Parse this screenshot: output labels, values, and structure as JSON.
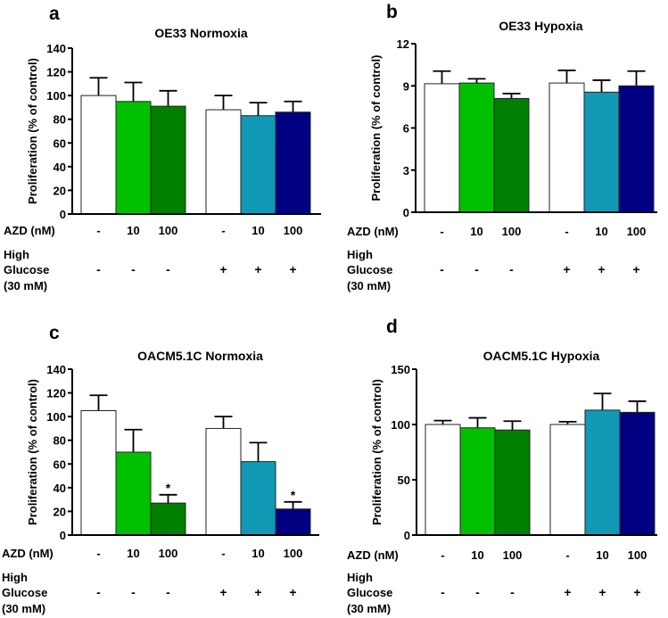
{
  "colors": [
    "#ffffff",
    "#00c000",
    "#008000",
    "#ffffff",
    "#1199b5",
    "#000080"
  ],
  "row_labels": {
    "azd": "AZD (nM)",
    "glucose_line1": "High",
    "glucose_line2": "Glucose",
    "glucose_line3": "(30 mM)"
  },
  "azd_values": [
    "-",
    "10",
    "100",
    "-",
    "10",
    "100"
  ],
  "glucose_values": [
    "-",
    "-",
    "-",
    "+",
    "+",
    "+"
  ],
  "chart_data": [
    {
      "panel": "a",
      "type": "bar",
      "title": "OE33 Normoxia",
      "ylabel": "Proliferation (% of control)",
      "ylim": [
        0,
        140
      ],
      "yticks": [
        0,
        20,
        40,
        60,
        80,
        100,
        120,
        140
      ],
      "values": [
        100,
        95,
        91,
        88,
        83,
        86
      ],
      "errors": [
        15,
        16,
        13,
        12,
        11,
        9
      ],
      "annotations": [
        "",
        "",
        "",
        "",
        "",
        ""
      ]
    },
    {
      "panel": "b",
      "type": "bar",
      "title": "OE33 Hypoxia",
      "ylabel": "Proliferation (% of control)",
      "ylim": [
        0,
        12
      ],
      "yticks": [
        0,
        3,
        6,
        9,
        12
      ],
      "values": [
        9.15,
        9.2,
        8.1,
        9.2,
        8.55,
        9.0
      ],
      "errors": [
        0.9,
        0.3,
        0.35,
        0.9,
        0.85,
        1.05
      ],
      "annotations": [
        "",
        "",
        "",
        "",
        "",
        ""
      ]
    },
    {
      "panel": "c",
      "type": "bar",
      "title": "OACM5.1C Normoxia",
      "ylabel": "Proliferation (% of control)",
      "ylim": [
        0,
        140
      ],
      "yticks": [
        0,
        20,
        40,
        60,
        80,
        100,
        120,
        140
      ],
      "values": [
        105,
        70,
        27,
        90,
        62,
        22
      ],
      "errors": [
        13,
        19,
        7,
        10,
        16,
        6
      ],
      "annotations": [
        "",
        "",
        "*",
        "",
        "",
        "*"
      ]
    },
    {
      "panel": "d",
      "type": "bar",
      "title": "OACM5.1C Hypoxia",
      "ylabel": "Proliferation (% of control)",
      "ylim": [
        0,
        150
      ],
      "yticks": [
        0,
        50,
        100,
        150
      ],
      "values": [
        100,
        97,
        95,
        100,
        113,
        111
      ],
      "errors": [
        3.5,
        9,
        8,
        2.5,
        15,
        10
      ],
      "annotations": [
        "",
        "",
        "",
        "",
        "",
        ""
      ]
    }
  ]
}
